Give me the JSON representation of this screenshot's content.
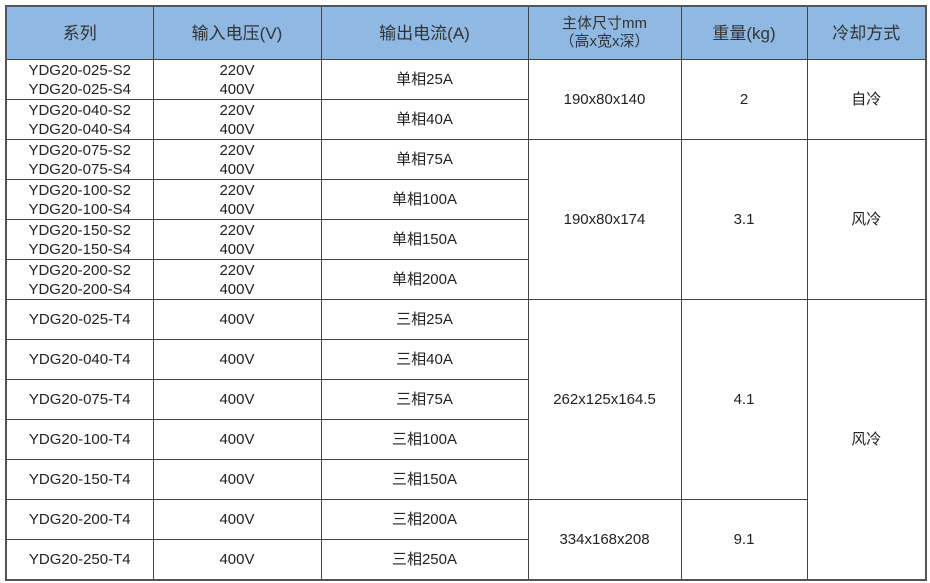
{
  "headers": [
    "系列",
    "输入电压(V)",
    "输出电流(A)",
    "主体尺寸mm",
    "（高x宽x深）",
    "重量(kg)",
    "冷却方式"
  ],
  "rows": [
    {
      "series": [
        "YDG20-025-S2",
        "YDG20-025-S4"
      ],
      "voltage": [
        "220V",
        "400V"
      ],
      "current": "单相25A"
    },
    {
      "series": [
        "YDG20-040-S2",
        "YDG20-040-S4"
      ],
      "voltage": [
        "220V",
        "400V"
      ],
      "current": "单相40A"
    },
    {
      "series": [
        "YDG20-075-S2",
        "YDG20-075-S4"
      ],
      "voltage": [
        "220V",
        "400V"
      ],
      "current": "单相75A"
    },
    {
      "series": [
        "YDG20-100-S2",
        "YDG20-100-S4"
      ],
      "voltage": [
        "220V",
        "400V"
      ],
      "current": "单相100A"
    },
    {
      "series": [
        "YDG20-150-S2",
        "YDG20-150-S4"
      ],
      "voltage": [
        "220V",
        "400V"
      ],
      "current": "单相150A"
    },
    {
      "series": [
        "YDG20-200-S2",
        "YDG20-200-S4"
      ],
      "voltage": [
        "220V",
        "400V"
      ],
      "current": "单相200A"
    },
    {
      "series": [
        "YDG20-025-T4"
      ],
      "voltage": [
        "400V"
      ],
      "current": "三相25A"
    },
    {
      "series": [
        "YDG20-040-T4"
      ],
      "voltage": [
        "400V"
      ],
      "current": "三相40A"
    },
    {
      "series": [
        "YDG20-075-T4"
      ],
      "voltage": [
        "400V"
      ],
      "current": "三相75A"
    },
    {
      "series": [
        "YDG20-100-T4"
      ],
      "voltage": [
        "400V"
      ],
      "current": "三相100A"
    },
    {
      "series": [
        "YDG20-150-T4"
      ],
      "voltage": [
        "400V"
      ],
      "current": "三相150A"
    },
    {
      "series": [
        "YDG20-200-T4"
      ],
      "voltage": [
        "400V"
      ],
      "current": "三相200A"
    },
    {
      "series": [
        "YDG20-250-T4"
      ],
      "voltage": [
        "400V"
      ],
      "current": "三相250A"
    }
  ],
  "groups": {
    "dims": [
      "190x80x140",
      "190x80x174",
      "262x125x164.5",
      "334x168x208"
    ],
    "weight": [
      "2",
      "3.1",
      "4.1",
      "9.1"
    ],
    "cooling": [
      "自冷",
      "风冷",
      "风冷"
    ]
  },
  "colors": {
    "header_bg": "#8fb9e3",
    "border": "#444444"
  }
}
